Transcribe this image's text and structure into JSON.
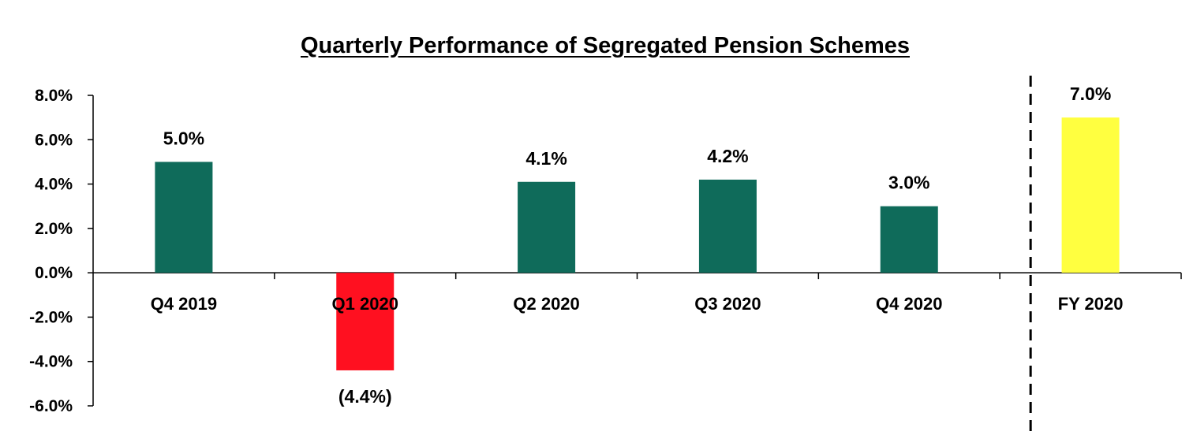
{
  "chart_data": {
    "type": "bar",
    "title": "Quarterly Performance of Segregated Pension Schemes",
    "xlabel": "",
    "ylabel": "",
    "categories": [
      "Q4 2019",
      "Q1 2020",
      "Q2 2020",
      "Q3 2020",
      "Q4 2020",
      "FY 2020"
    ],
    "values": [
      5.0,
      -4.4,
      4.1,
      4.2,
      3.0,
      7.0
    ],
    "data_labels": [
      "5.0%",
      "(4.4%)",
      "4.1%",
      "4.2%",
      "3.0%",
      "7.0%"
    ],
    "bar_colors": [
      "#0f6b5a",
      "#ff1020",
      "#0f6b5a",
      "#0f6b5a",
      "#0f6b5a",
      "#ffff40"
    ],
    "ylim": [
      -6,
      8
    ],
    "yticks": [
      8,
      6,
      4,
      2,
      0,
      -2,
      -4,
      -6
    ],
    "ytick_labels": [
      "8.0%",
      "6.0%",
      "4.0%",
      "2.0%",
      "0.0%",
      "-2.0%",
      "-4.0%",
      "-6.0%"
    ],
    "grid": false,
    "legend": "none",
    "separator": "dashed vertical line between Q4 2020 and FY 2020"
  }
}
